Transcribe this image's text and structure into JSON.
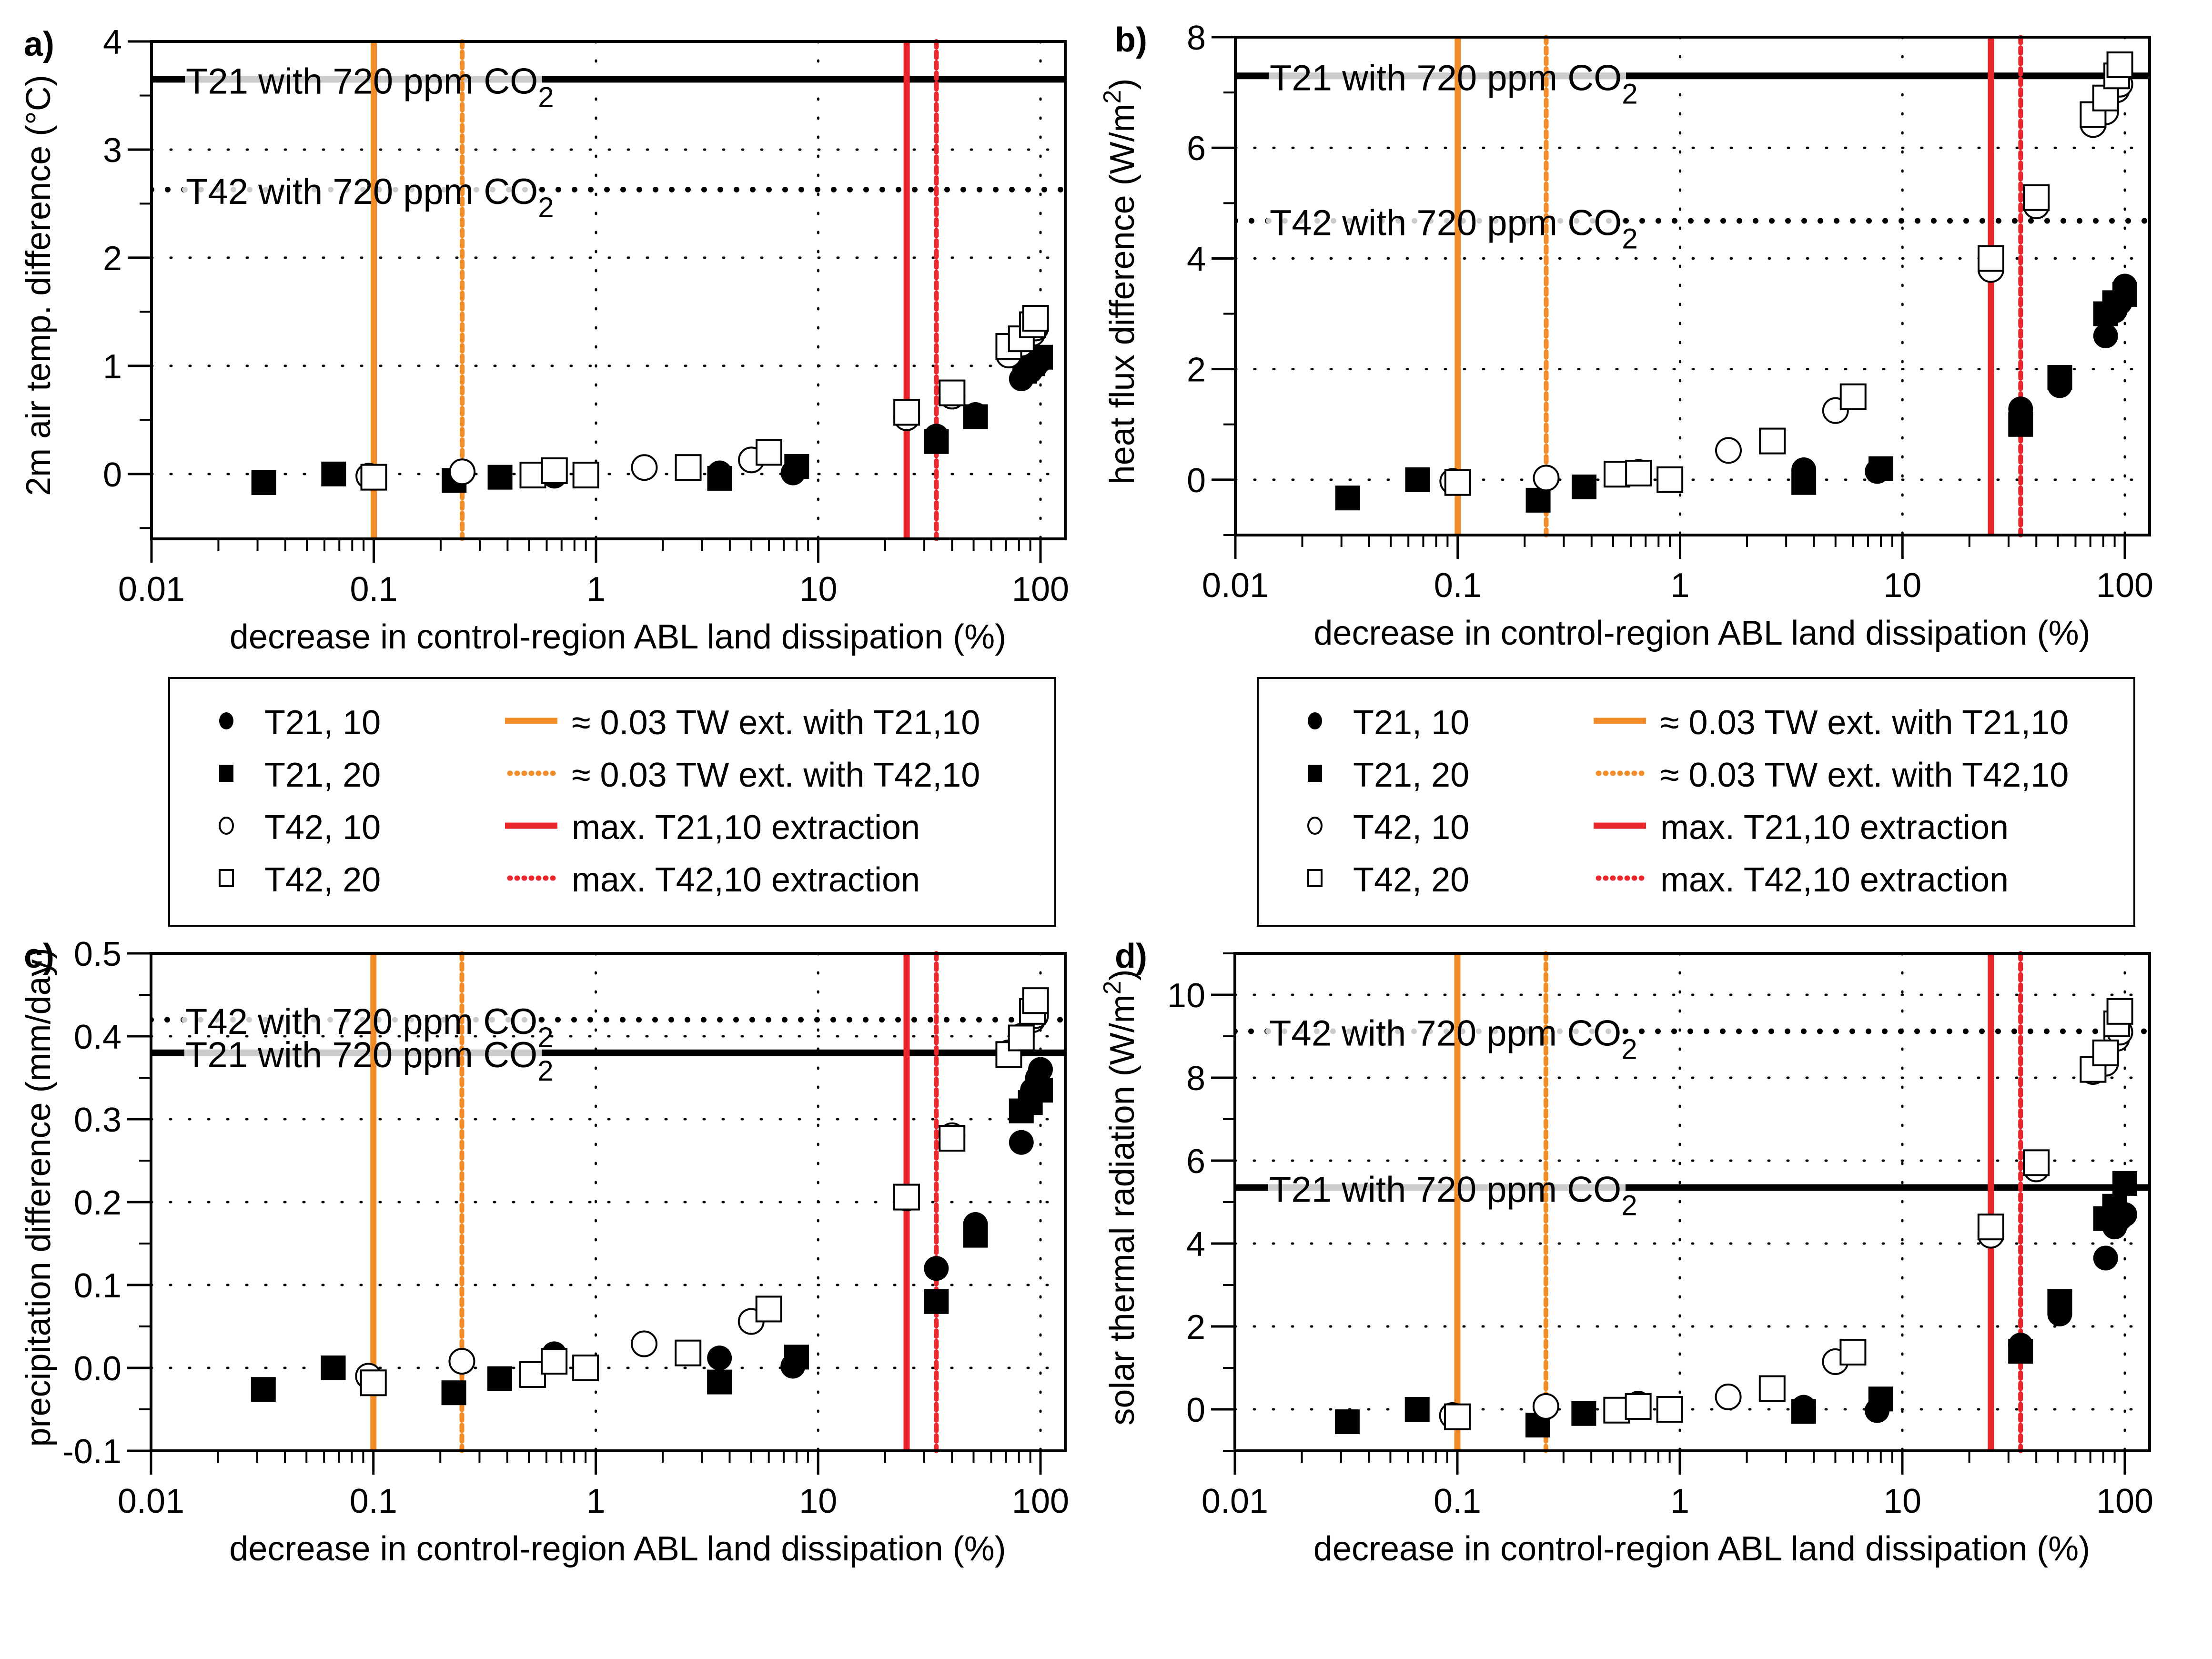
{
  "figure": {
    "legend": {
      "markers": [
        {
          "label": "T21, 10",
          "marker": "filled-circle"
        },
        {
          "label": "T21, 20",
          "marker": "filled-square"
        },
        {
          "label": "T42, 10",
          "marker": "open-circle"
        },
        {
          "label": "T42, 20",
          "marker": "open-square"
        }
      ],
      "lines": [
        {
          "label": "≈ 0.03 TW ext. with T21,10",
          "color": "#f28c28",
          "style": "solid"
        },
        {
          "label": "≈ 0.03 TW ext. with T42,10",
          "color": "#f28c28",
          "style": "dotted"
        },
        {
          "label": "max. T21,10 extraction",
          "color": "#e8262b",
          "style": "solid"
        },
        {
          "label": "max. T42,10 extraction",
          "color": "#e8262b",
          "style": "dotted"
        }
      ]
    },
    "colors": {
      "orange": "#f28c28",
      "red": "#e8262b",
      "black": "#000000",
      "label_bg": "#cccccc"
    }
  },
  "chart_data": [
    {
      "panel": "a)",
      "type": "scatter",
      "xlabel": "decrease in control-region ABL land dissipation (%)",
      "ylabel": "2m air temp. difference (°C)",
      "xscale": "log",
      "xlim": [
        0.01,
        130
      ],
      "ylim": [
        -0.6,
        4
      ],
      "xticks": [
        "0.01",
        "0.1",
        "1",
        "10",
        "100"
      ],
      "yticks": [
        0,
        1,
        2,
        3,
        4
      ],
      "grid": true,
      "vlines": [
        {
          "x": 0.1,
          "color": "#f28c28",
          "style": "solid"
        },
        {
          "x": 0.25,
          "color": "#f28c28",
          "style": "dotted"
        },
        {
          "x": 25,
          "color": "#e8262b",
          "style": "solid"
        },
        {
          "x": 34,
          "color": "#e8262b",
          "style": "dotted"
        }
      ],
      "hlines": [
        {
          "y": 3.65,
          "style": "solid",
          "label": "T21 with 720 ppm CO",
          "sub": "2"
        },
        {
          "y": 2.63,
          "style": "dotted",
          "label": "T42 with 720 ppm CO",
          "sub": "2"
        }
      ],
      "series": [
        {
          "name": "T21, 10",
          "marker": "filled-circle",
          "points": [
            [
              0.65,
              -0.02
            ],
            [
              3.6,
              0.01
            ],
            [
              7.7,
              0.01
            ],
            [
              34,
              0.35
            ],
            [
              51,
              0.55
            ],
            [
              82,
              0.88
            ],
            [
              90,
              0.95
            ],
            [
              95,
              1.0
            ],
            [
              100,
              1.05
            ]
          ]
        },
        {
          "name": "T21, 20",
          "marker": "filled-square",
          "points": [
            [
              0.032,
              -0.08
            ],
            [
              0.066,
              0.0
            ],
            [
              0.23,
              -0.06
            ],
            [
              0.37,
              -0.03
            ],
            [
              3.6,
              -0.04
            ],
            [
              8,
              0.07
            ],
            [
              34,
              0.3
            ],
            [
              51,
              0.53
            ],
            [
              85,
              0.95
            ],
            [
              92,
              1.02
            ],
            [
              100,
              1.08
            ]
          ]
        },
        {
          "name": "T42, 10",
          "marker": "open-circle",
          "points": [
            [
              0.095,
              -0.02
            ],
            [
              0.25,
              0.02
            ],
            [
              1.65,
              0.06
            ],
            [
              5,
              0.13
            ],
            [
              25,
              0.52
            ],
            [
              40,
              0.72
            ],
            [
              72,
              1.1
            ],
            [
              82,
              1.2
            ],
            [
              92,
              1.3
            ],
            [
              95,
              1.35
            ]
          ]
        },
        {
          "name": "T42, 20",
          "marker": "open-square",
          "points": [
            [
              0.1,
              -0.03
            ],
            [
              0.52,
              -0.01
            ],
            [
              0.65,
              0.03
            ],
            [
              0.9,
              -0.01
            ],
            [
              2.6,
              0.06
            ],
            [
              6,
              0.2
            ],
            [
              25,
              0.57
            ],
            [
              40,
              0.75
            ],
            [
              72,
              1.18
            ],
            [
              82,
              1.25
            ],
            [
              92,
              1.38
            ],
            [
              95,
              1.44
            ]
          ]
        }
      ]
    },
    {
      "panel": "b)",
      "type": "scatter",
      "xlabel": "decrease in control-region ABL land dissipation (%)",
      "ylabel": "heat flux difference (W/m",
      "ylabel_sup": "2",
      "ylabel_end": ")",
      "xscale": "log",
      "xlim": [
        0.01,
        130
      ],
      "ylim": [
        -1,
        8
      ],
      "xticks": [
        "0.01",
        "0.1",
        "1",
        "10",
        "100"
      ],
      "yticks": [
        0,
        2,
        4,
        6,
        8
      ],
      "grid": true,
      "vlines": [
        {
          "x": 0.1,
          "color": "#f28c28",
          "style": "solid"
        },
        {
          "x": 0.25,
          "color": "#f28c28",
          "style": "dotted"
        },
        {
          "x": 25,
          "color": "#e8262b",
          "style": "solid"
        },
        {
          "x": 34,
          "color": "#e8262b",
          "style": "dotted"
        }
      ],
      "hlines": [
        {
          "y": 7.3,
          "style": "solid",
          "label": "T21 with 720 ppm CO",
          "sub": "2"
        },
        {
          "y": 4.68,
          "style": "dotted",
          "label": "T42 with 720 ppm CO",
          "sub": "2"
        }
      ],
      "series": [
        {
          "name": "T21, 10",
          "marker": "filled-circle",
          "points": [
            [
              0.65,
              0.15
            ],
            [
              3.6,
              0.18
            ],
            [
              7.7,
              0.15
            ],
            [
              34,
              1.28
            ],
            [
              51,
              1.7
            ],
            [
              82,
              2.6
            ],
            [
              90,
              3.05
            ],
            [
              95,
              3.2
            ],
            [
              100,
              3.5
            ]
          ]
        },
        {
          "name": "T21, 20",
          "marker": "filled-square",
          "points": [
            [
              0.032,
              -0.33
            ],
            [
              0.066,
              0.0
            ],
            [
              0.23,
              -0.37
            ],
            [
              0.37,
              -0.13
            ],
            [
              3.6,
              -0.05
            ],
            [
              8,
              0.2
            ],
            [
              34,
              1.0
            ],
            [
              51,
              1.85
            ],
            [
              82,
              3.0
            ],
            [
              90,
              3.2
            ],
            [
              100,
              3.35
            ]
          ]
        },
        {
          "name": "T42, 10",
          "marker": "open-circle",
          "points": [
            [
              0.095,
              -0.03
            ],
            [
              0.25,
              0.03
            ],
            [
              1.65,
              0.53
            ],
            [
              5,
              1.25
            ],
            [
              25,
              3.8
            ],
            [
              40,
              4.95
            ],
            [
              72,
              6.42
            ],
            [
              82,
              6.65
            ],
            [
              92,
              7.05
            ],
            [
              95,
              7.15
            ]
          ]
        },
        {
          "name": "T42, 20",
          "marker": "open-square",
          "points": [
            [
              0.1,
              -0.05
            ],
            [
              0.52,
              0.1
            ],
            [
              0.65,
              0.12
            ],
            [
              0.9,
              0.0
            ],
            [
              2.6,
              0.7
            ],
            [
              6,
              1.5
            ],
            [
              25,
              4.0
            ],
            [
              40,
              5.1
            ],
            [
              72,
              6.6
            ],
            [
              82,
              6.9
            ],
            [
              92,
              7.3
            ],
            [
              95,
              7.5
            ]
          ]
        }
      ]
    },
    {
      "panel": "c)",
      "type": "scatter",
      "xlabel": "decrease in control-region ABL land dissipation (%)",
      "ylabel": "precipitation difference (mm/day)",
      "xscale": "log",
      "xlim": [
        0.01,
        130
      ],
      "ylim": [
        -0.1,
        0.5
      ],
      "xticks": [
        "0.01",
        "0.1",
        "1",
        "10",
        "100"
      ],
      "yticks": [
        -0.1,
        0.0,
        0.1,
        0.2,
        0.3,
        0.4,
        0.5
      ],
      "grid": true,
      "vlines": [
        {
          "x": 0.1,
          "color": "#f28c28",
          "style": "solid"
        },
        {
          "x": 0.25,
          "color": "#f28c28",
          "style": "dotted"
        },
        {
          "x": 25,
          "color": "#e8262b",
          "style": "solid"
        },
        {
          "x": 34,
          "color": "#e8262b",
          "style": "dotted"
        }
      ],
      "hlines": [
        {
          "y": 0.42,
          "style": "dotted",
          "label": "T42 with 720 ppm CO",
          "sub": "2"
        },
        {
          "y": 0.38,
          "style": "solid",
          "label": "T21 with 720 ppm CO",
          "sub": "2"
        }
      ],
      "series": [
        {
          "name": "T21, 10",
          "marker": "filled-circle",
          "points": [
            [
              0.65,
              0.017
            ],
            [
              3.6,
              0.012
            ],
            [
              7.7,
              0.002
            ],
            [
              34,
              0.12
            ],
            [
              51,
              0.173
            ],
            [
              82,
              0.272
            ],
            [
              92,
              0.335
            ],
            [
              97,
              0.35
            ],
            [
              100,
              0.36
            ]
          ]
        },
        {
          "name": "T21, 20",
          "marker": "filled-square",
          "points": [
            [
              0.032,
              -0.026
            ],
            [
              0.066,
              0.0
            ],
            [
              0.23,
              -0.03
            ],
            [
              0.37,
              -0.013
            ],
            [
              3.6,
              -0.017
            ],
            [
              8,
              0.013
            ],
            [
              34,
              0.08
            ],
            [
              51,
              0.16
            ],
            [
              82,
              0.31
            ],
            [
              90,
              0.32
            ],
            [
              100,
              0.335
            ]
          ]
        },
        {
          "name": "T42, 10",
          "marker": "open-circle",
          "points": [
            [
              0.095,
              -0.01
            ],
            [
              0.25,
              0.008
            ],
            [
              1.65,
              0.029
            ],
            [
              5,
              0.056
            ],
            [
              25,
              0.205
            ],
            [
              40,
              0.28
            ],
            [
              72,
              0.38
            ],
            [
              82,
              0.4
            ],
            [
              92,
              0.42
            ],
            [
              95,
              0.425
            ]
          ]
        },
        {
          "name": "T42, 20",
          "marker": "open-square",
          "points": [
            [
              0.1,
              -0.018
            ],
            [
              0.52,
              -0.008
            ],
            [
              0.65,
              0.008
            ],
            [
              0.9,
              0.0
            ],
            [
              2.6,
              0.018
            ],
            [
              6,
              0.071
            ],
            [
              25,
              0.206
            ],
            [
              40,
              0.277
            ],
            [
              72,
              0.378
            ],
            [
              82,
              0.398
            ],
            [
              92,
              0.43
            ],
            [
              95,
              0.443
            ]
          ]
        }
      ]
    },
    {
      "panel": "d)",
      "type": "scatter",
      "xlabel": "decrease in control-region ABL land dissipation (%)",
      "ylabel": "solar thermal radiation (W/m",
      "ylabel_sup": "2",
      "ylabel_end": ")",
      "xscale": "log",
      "xlim": [
        0.01,
        130
      ],
      "ylim": [
        -1,
        11
      ],
      "xticks": [
        "0.01",
        "0.1",
        "1",
        "10",
        "100"
      ],
      "yticks": [
        0,
        2,
        4,
        6,
        8,
        10
      ],
      "grid": true,
      "vlines": [
        {
          "x": 0.1,
          "color": "#f28c28",
          "style": "solid"
        },
        {
          "x": 0.25,
          "color": "#f28c28",
          "style": "dotted"
        },
        {
          "x": 25,
          "color": "#e8262b",
          "style": "solid"
        },
        {
          "x": 34,
          "color": "#e8262b",
          "style": "dotted"
        }
      ],
      "hlines": [
        {
          "y": 9.12,
          "style": "dotted",
          "label": "T42 with 720 ppm CO",
          "sub": "2"
        },
        {
          "y": 5.35,
          "style": "solid",
          "label": "T21 with 720 ppm CO",
          "sub": "2"
        }
      ],
      "series": [
        {
          "name": "T21, 10",
          "marker": "filled-circle",
          "points": [
            [
              0.65,
              0.15
            ],
            [
              3.6,
              0.05
            ],
            [
              7.7,
              -0.03
            ],
            [
              34,
              1.55
            ],
            [
              51,
              2.3
            ],
            [
              82,
              3.65
            ],
            [
              90,
              4.4
            ],
            [
              95,
              4.6
            ],
            [
              100,
              4.7
            ]
          ]
        },
        {
          "name": "T21, 20",
          "marker": "filled-square",
          "points": [
            [
              0.032,
              -0.3
            ],
            [
              0.066,
              0.0
            ],
            [
              0.23,
              -0.38
            ],
            [
              0.37,
              -0.1
            ],
            [
              3.6,
              -0.05
            ],
            [
              8,
              0.25
            ],
            [
              34,
              1.4
            ],
            [
              51,
              2.6
            ],
            [
              82,
              4.6
            ],
            [
              90,
              4.9
            ],
            [
              100,
              5.45
            ]
          ]
        },
        {
          "name": "T42, 10",
          "marker": "open-circle",
          "points": [
            [
              0.095,
              -0.15
            ],
            [
              0.25,
              0.07
            ],
            [
              1.65,
              0.3
            ],
            [
              5,
              1.15
            ],
            [
              25,
              4.2
            ],
            [
              40,
              5.8
            ],
            [
              72,
              8.15
            ],
            [
              82,
              8.35
            ],
            [
              92,
              8.95
            ],
            [
              95,
              9.1
            ]
          ]
        },
        {
          "name": "T42, 20",
          "marker": "open-square",
          "points": [
            [
              0.1,
              -0.18
            ],
            [
              0.52,
              -0.02
            ],
            [
              0.65,
              0.07
            ],
            [
              0.9,
              0.0
            ],
            [
              2.6,
              0.5
            ],
            [
              6,
              1.38
            ],
            [
              25,
              4.4
            ],
            [
              40,
              5.95
            ],
            [
              72,
              8.2
            ],
            [
              82,
              8.6
            ],
            [
              92,
              9.3
            ],
            [
              95,
              9.6
            ]
          ]
        }
      ]
    }
  ]
}
